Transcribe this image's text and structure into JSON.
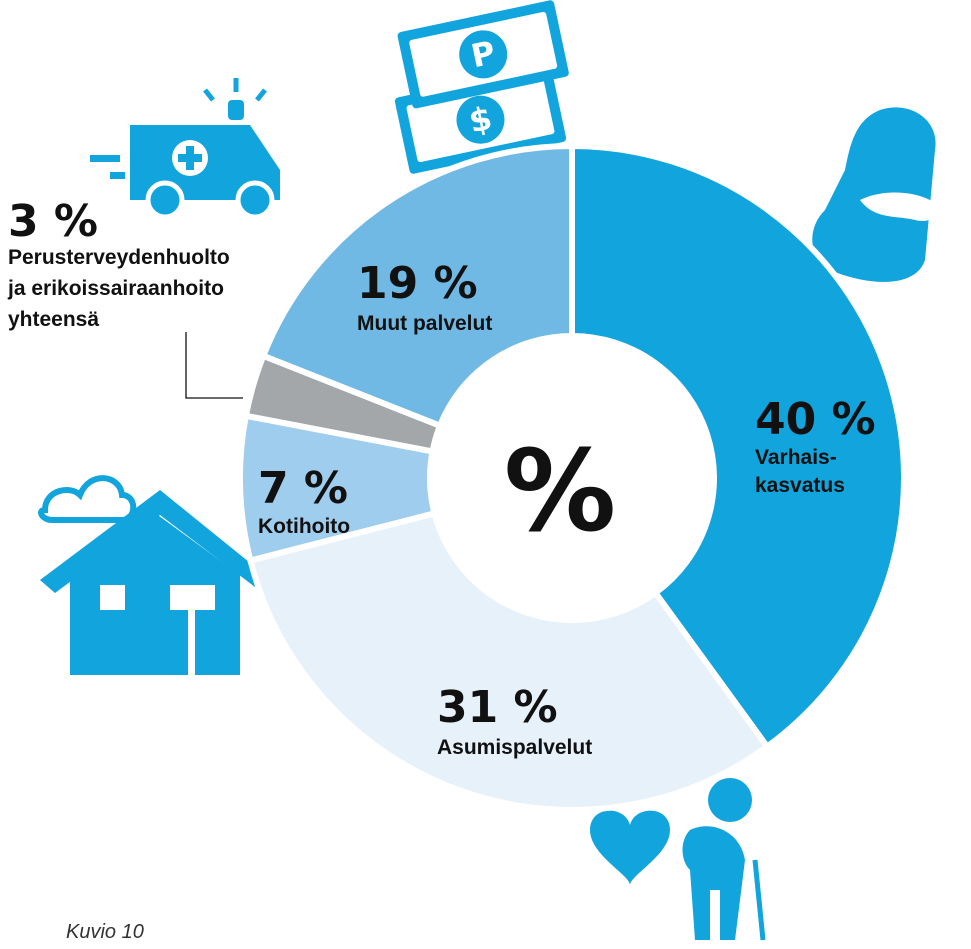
{
  "chart_data": {
    "type": "donut",
    "center_label": "%",
    "categories": [
      "Varhais- kasvatus",
      "Asumispalvelut",
      "Kotihoito",
      "Perusterveydenhuolto ja erikoissairaanhoito yhteensä",
      "Muut palvelut"
    ],
    "values": [
      40,
      31,
      7,
      3,
      19
    ],
    "value_labels": [
      "40 %",
      "31 %",
      "7 %",
      "3 %",
      "19 %"
    ],
    "colors": [
      "#12a4dc",
      "#e6f1f9",
      "#9fcdee",
      "#a4a7a9",
      "#70b9e4"
    ],
    "caption": "Kuvio 10"
  }
}
